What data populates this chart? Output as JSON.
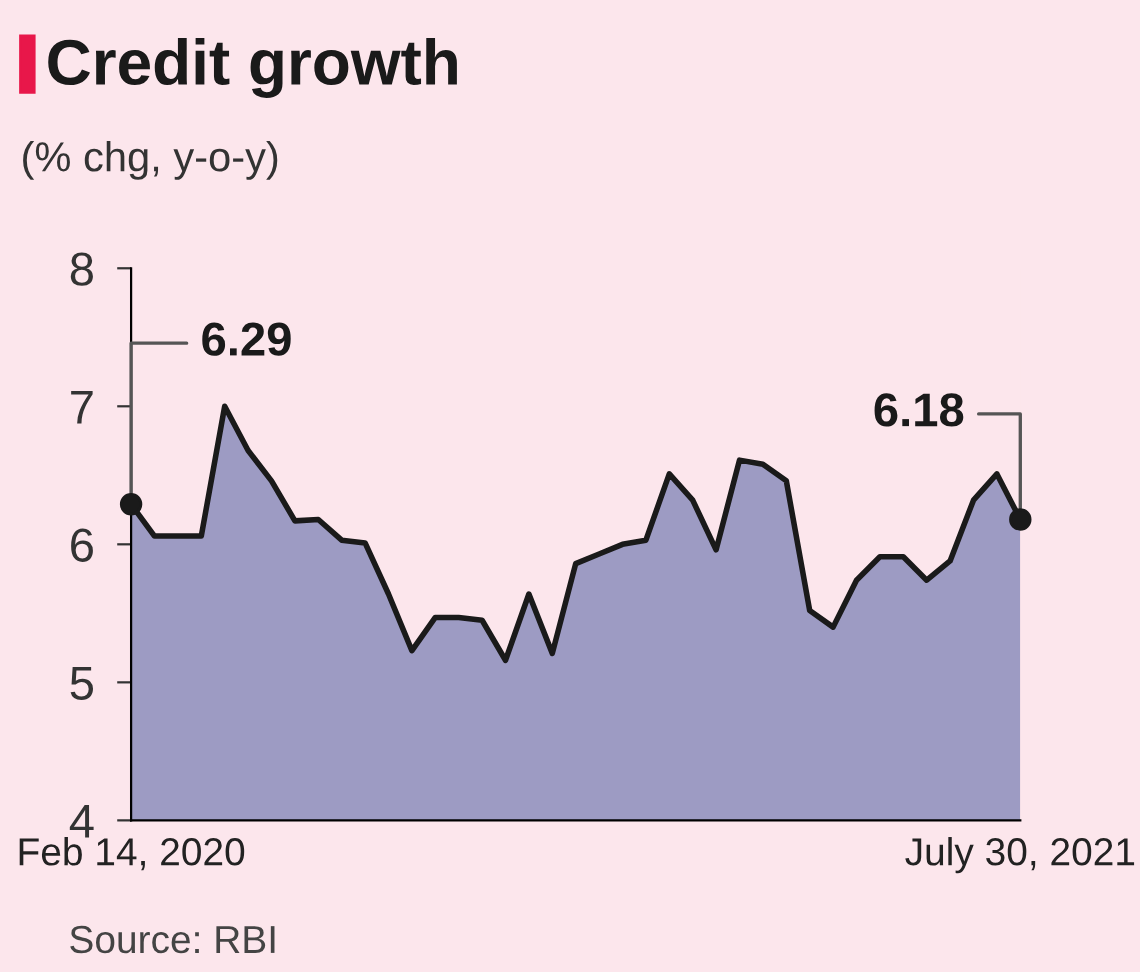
{
  "chart_data": {
    "type": "area",
    "title": "Credit growth",
    "subtitle": "(% chg, y-o-y)",
    "x": [
      "2020-02-14",
      "2020-02-28",
      "2020-03-13",
      "2020-03-27",
      "2020-04-10",
      "2020-04-24",
      "2020-05-08",
      "2020-05-22",
      "2020-06-05",
      "2020-06-19",
      "2020-07-03",
      "2020-07-17",
      "2020-07-31",
      "2020-08-14",
      "2020-08-28",
      "2020-09-11",
      "2020-09-25",
      "2020-10-09",
      "2020-10-23",
      "2020-11-06",
      "2020-11-20",
      "2020-12-04",
      "2020-12-18",
      "2021-01-01",
      "2021-01-15",
      "2021-01-29",
      "2021-02-12",
      "2021-02-26",
      "2021-03-12",
      "2021-03-26",
      "2021-04-09",
      "2021-04-23",
      "2021-05-07",
      "2021-05-21",
      "2021-06-04",
      "2021-06-18",
      "2021-07-02",
      "2021-07-16",
      "2021-07-30"
    ],
    "series": [
      {
        "color": "#9d9bc3",
        "values": [
          6.29,
          6.06,
          6.06,
          6.06,
          7.0,
          6.68,
          6.46,
          6.17,
          6.18,
          6.03,
          6.01,
          5.64,
          5.23,
          5.47,
          5.47,
          5.45,
          5.16,
          5.64,
          5.21,
          5.86,
          5.93,
          6.0,
          6.03,
          6.51,
          6.32,
          5.96,
          6.61,
          6.58,
          6.46,
          5.52,
          5.4,
          5.74,
          5.91,
          5.91,
          5.74,
          5.88,
          6.32,
          6.51,
          6.18
        ],
        "value_labels": [
          "6.29",
          null,
          null,
          null,
          null,
          null,
          null,
          null,
          null,
          null,
          null,
          null,
          null,
          null,
          null,
          null,
          null,
          null,
          null,
          null,
          null,
          null,
          null,
          null,
          null,
          null,
          null,
          null,
          null,
          null,
          null,
          null,
          null,
          null,
          null,
          null,
          null,
          null,
          "6.18"
        ]
      },
      {
        "type": "scatter",
        "color": "#1a1a1a",
        "x": [
          "2020-02-14",
          "2021-07-30"
        ],
        "values": [
          6.29,
          6.18
        ]
      }
    ],
    "xlim": [
      "2020-02-14",
      "2021-07-30"
    ],
    "xticks": [
      {
        "value": "2020-02-14",
        "label": "Feb 14, 2020"
      },
      {
        "value": "2021-07-30",
        "label": "July 30, 2021"
      }
    ],
    "ylim": [
      4,
      8
    ],
    "yticks": [
      4,
      5,
      6,
      7,
      8
    ],
    "grid": false,
    "legend": false,
    "annotations": [
      "Source: RBI"
    ]
  }
}
